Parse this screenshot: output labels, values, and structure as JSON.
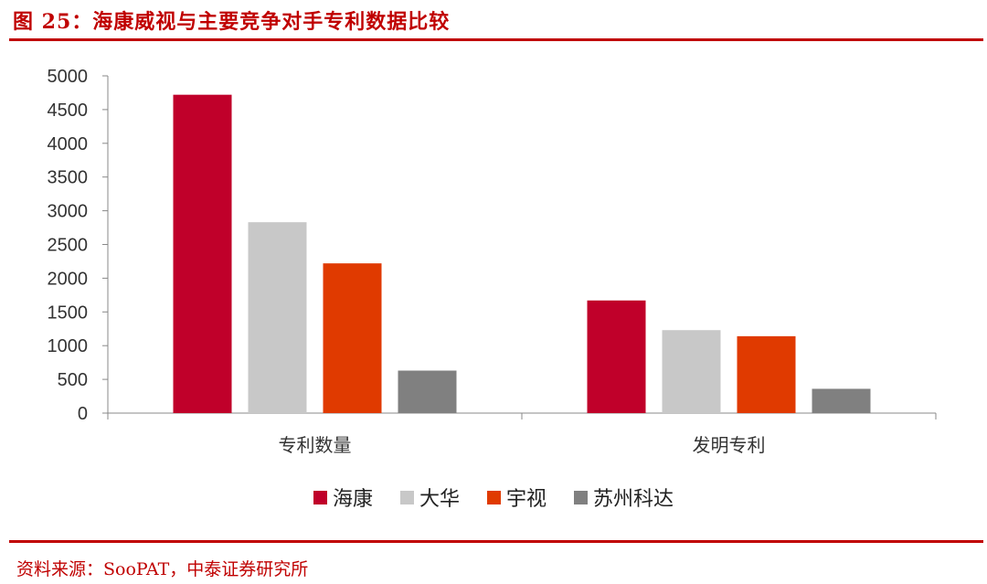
{
  "figure": {
    "title": "图 25：海康威视与主要竞争对手专利数据比较",
    "source": "资料来源：SooPAT，中泰证券研究所"
  },
  "chart_data": {
    "type": "bar",
    "categories": [
      "专利数量",
      "发明专利"
    ],
    "series": [
      {
        "name": "海康",
        "values": [
          4720,
          1670
        ],
        "color": "#c0002a"
      },
      {
        "name": "大华",
        "values": [
          2830,
          1230
        ],
        "color": "#c8c8c8"
      },
      {
        "name": "宇视",
        "values": [
          2220,
          1140
        ],
        "color": "#e03a00"
      },
      {
        "name": "苏州科达",
        "values": [
          630,
          360
        ],
        "color": "#808080"
      }
    ],
    "yticks": [
      0,
      500,
      1000,
      1500,
      2000,
      2500,
      3000,
      3500,
      4000,
      4500,
      5000
    ],
    "ylim": [
      0,
      5000
    ],
    "grid": false,
    "legend": "bottom"
  }
}
